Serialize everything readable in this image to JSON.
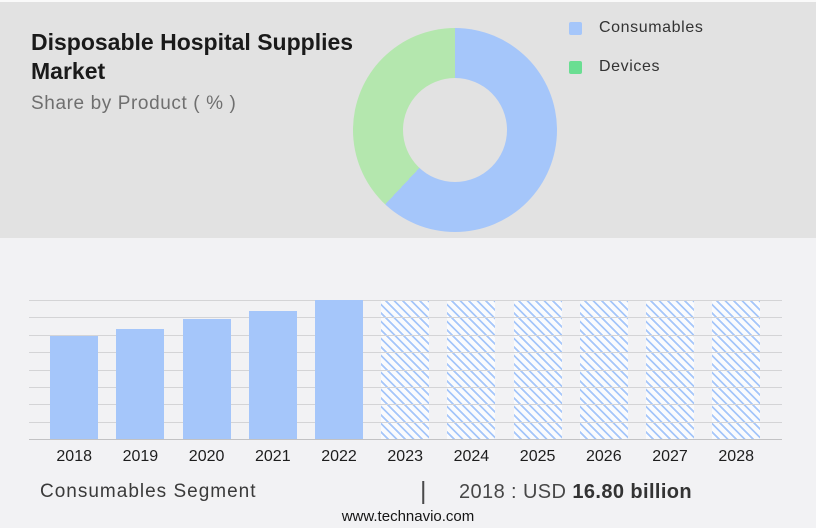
{
  "header": {
    "title": "Disposable Hospital Supplies Market",
    "subtitle": "Share by Product ( % )"
  },
  "legend": [
    {
      "label": "Consumables",
      "color": "#a5c6fa"
    },
    {
      "label": "Devices",
      "color": "#6ade92"
    }
  ],
  "chart_data": [
    {
      "type": "pie",
      "subtype": "donut",
      "title": "Disposable Hospital Supplies Market — Share by Product ( % )",
      "segments": [
        {
          "label": "Consumables",
          "value_pct": 62,
          "color": "#a5c6fa"
        },
        {
          "label": "Devices",
          "value_pct": 38,
          "color": "#b4e7ae"
        }
      ],
      "note": "percent values not printed on chart; angles estimated from pixels",
      "legend_position": "right"
    },
    {
      "type": "bar",
      "categories": [
        "2018",
        "2019",
        "2020",
        "2021",
        "2022",
        "2023",
        "2024",
        "2025",
        "2026",
        "2027",
        "2028"
      ],
      "relative_heights": [
        0.74,
        0.79,
        0.86,
        0.92,
        1.0,
        1.0,
        1.0,
        1.0,
        1.0,
        1.0,
        1.0
      ],
      "historical_years": [
        "2018",
        "2019",
        "2020",
        "2021",
        "2022"
      ],
      "forecast_years": [
        "2023",
        "2024",
        "2025",
        "2026",
        "2027",
        "2028"
      ],
      "known_values": {
        "2018": "USD 16.80 billion"
      },
      "gridlines": 9,
      "grid_on": true,
      "bar_color": "#a5c6fa",
      "forecast_style": "diagonal-hatch",
      "ylabel": "",
      "xlabel": ""
    }
  ],
  "footer": {
    "segment_label": "Consumables Segment",
    "separator": "|",
    "value_prefix": "2018 : USD ",
    "value_bold": "16.80 billion",
    "website": "www.technavio.com"
  },
  "colors": {
    "header_bg": "#e2e2e2",
    "chart_bg": "#f2f2f4",
    "bar_blue": "#a5c6fa",
    "donut_green": "#b4e7ae",
    "legend_green": "#6ade92",
    "gridline": "#d4d4d6",
    "baseline": "#c2c2c4",
    "text_dark": "#1a1a1a",
    "text_gray": "#6f6f6f"
  }
}
